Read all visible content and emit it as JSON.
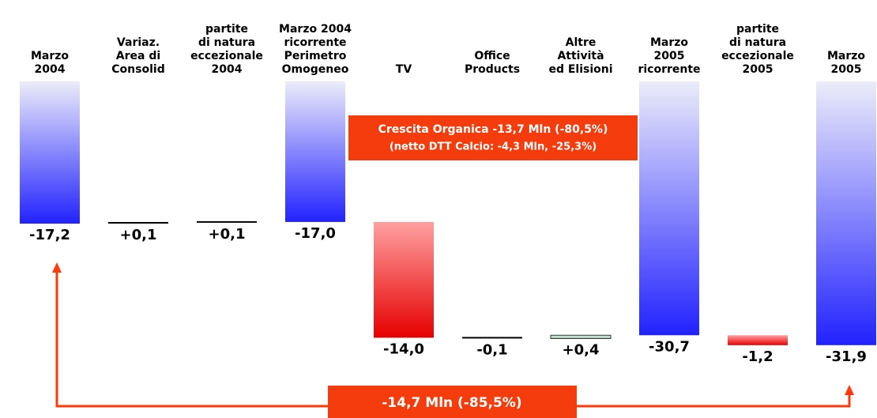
{
  "chart_data": {
    "type": "waterfall",
    "categories": [
      [
        "Marzo",
        "2004"
      ],
      [
        "Variaz.",
        "Area di",
        "Consolid"
      ],
      [
        "partite",
        "di natura",
        "eccezionale",
        "2004"
      ],
      [
        "Marzo 2004",
        "ricorrente",
        "Perimetro",
        "Omogeneo"
      ],
      [
        "TV"
      ],
      [
        "Office",
        "Products"
      ],
      [
        "Altre",
        "Attività",
        "ed Elisioni"
      ],
      [
        "Marzo",
        "2005",
        "ricorrente"
      ],
      [
        "partite",
        "di natura",
        "eccezionale",
        "2005"
      ],
      [
        "Marzo",
        "2005"
      ]
    ],
    "values": [
      -17.2,
      0.1,
      0.1,
      -17.0,
      -14.0,
      -0.1,
      0.4,
      -30.7,
      -1.2,
      -31.9
    ],
    "value_labels": [
      "-17,2",
      "+0,1",
      "+0,1",
      "-17,0",
      "-14,0",
      "-0,1",
      "+0,4",
      "-30,7",
      "-1,2",
      "-31,9"
    ],
    "totals": [
      true,
      false,
      false,
      true,
      false,
      false,
      false,
      true,
      false,
      true
    ],
    "colors": {
      "total": "#2222ff",
      "decrease": "#e60000",
      "increase": "#9cc4ac"
    },
    "annotations": [
      "Crescita Organica -13,7 Mln (-80,5%)",
      "(netto DTT Calcio: -4,3 Mln,  -25,3%)",
      "-14,7 Mln (-85,5%)"
    ]
  }
}
